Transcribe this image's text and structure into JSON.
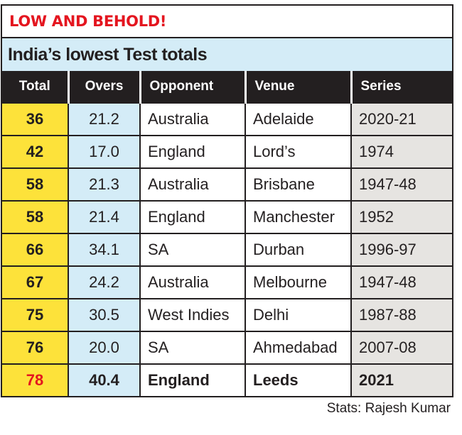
{
  "header": {
    "kicker": "LOW AND BEHOLD!",
    "title": "India’s lowest Test totals"
  },
  "chart_data": {
    "type": "table",
    "title": "India’s lowest Test totals",
    "columns": [
      "Total",
      "Overs",
      "Opponent",
      "Venue",
      "Series"
    ],
    "rows": [
      [
        "36",
        "21.2",
        "Australia",
        "Adelaide",
        "2020-21"
      ],
      [
        "42",
        "17.0",
        "England",
        "Lord’s",
        "1974"
      ],
      [
        "58",
        "21.3",
        "Australia",
        "Brisbane",
        "1947-48"
      ],
      [
        "58",
        "21.4",
        "England",
        "Manchester",
        "1952"
      ],
      [
        "66",
        "34.1",
        "SA",
        "Durban",
        "1996-97"
      ],
      [
        "67",
        "24.2",
        "Australia",
        "Melbourne",
        "1947-48"
      ],
      [
        "75",
        "30.5",
        "West Indies",
        "Delhi",
        "1987-88"
      ],
      [
        "76",
        "20.0",
        "SA",
        "Ahmedabad",
        "2007-08"
      ],
      [
        "78",
        "40.4",
        "England",
        "Leeds",
        "2021"
      ]
    ],
    "highlighted_row": 8
  },
  "colors": {
    "accent_red": "#e4151f",
    "total_yellow": "#fde23a",
    "overs_blue": "#d4ecf7",
    "series_grey": "#e6e4e1"
  },
  "footer": {
    "credit": "Stats: Rajesh Kumar"
  }
}
